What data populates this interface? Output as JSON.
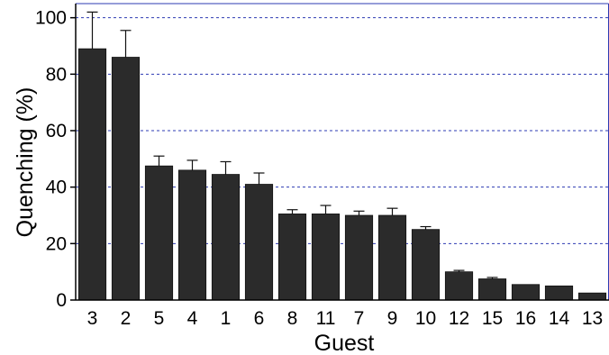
{
  "chart_data": {
    "type": "bar",
    "xlabel": "Guest",
    "ylabel": "Quenching (%)",
    "categories": [
      "3",
      "2",
      "5",
      "4",
      "1",
      "6",
      "8",
      "11",
      "7",
      "9",
      "10",
      "12",
      "15",
      "16",
      "14",
      "13"
    ],
    "values": [
      89,
      86,
      47.5,
      46,
      44.5,
      41,
      30.5,
      30.5,
      30,
      30,
      25,
      10,
      7.5,
      5.5,
      5,
      2.5
    ],
    "errors": [
      13,
      9.5,
      3.5,
      3.5,
      4.5,
      4,
      1.5,
      3,
      1.5,
      2.5,
      1,
      0.5,
      0.5,
      0,
      0,
      0
    ],
    "ylim": [
      0,
      105
    ],
    "yticks": [
      0,
      20,
      40,
      60,
      80,
      100
    ],
    "grid": "y-dashed",
    "colors": {
      "bar": "#2b2b2b",
      "grid": "#2e3bb3",
      "frame": "#2e3bb3",
      "axis": "#000000"
    }
  }
}
